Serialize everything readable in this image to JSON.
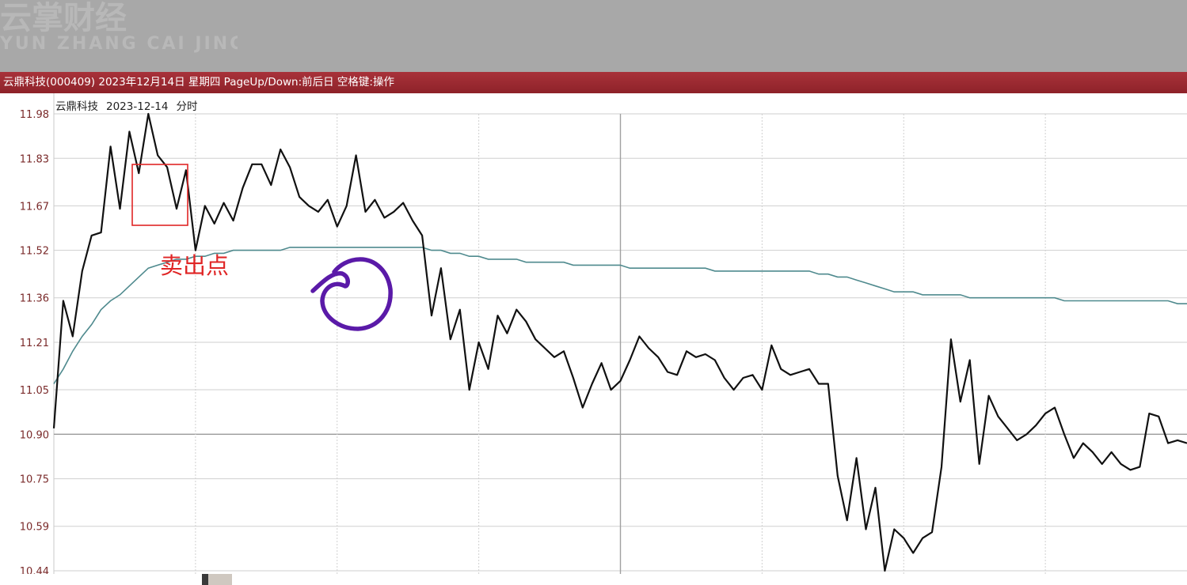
{
  "window": {
    "title_bar": "云鼎科技(000409) 2023年12月14日 星期四 PageUp/Down:前后日 空格键:操作",
    "watermark": "云掌财经"
  },
  "chart_caption": {
    "stock_name": "云鼎科技",
    "date": "2023-12-14",
    "view": "分时"
  },
  "annotations": {
    "sell_point_label": "卖出点",
    "sell_box_color": "#e02626",
    "circle_color": "#5a1aa8"
  },
  "chart_data": {
    "type": "line",
    "title": "",
    "xlabel": "",
    "ylabel": "",
    "grid": true,
    "yticks": [
      "11.98",
      "11.83",
      "11.67",
      "11.52",
      "11.36",
      "11.21",
      "11.05",
      "10.90",
      "10.75",
      "10.59",
      "10.44"
    ],
    "ylim": [
      10.44,
      11.98
    ],
    "xlim": [
      0,
      240
    ],
    "series": [
      {
        "name": "",
        "role": "price",
        "color": "#111111",
        "x": [
          0,
          2,
          4,
          6,
          8,
          10,
          12,
          14,
          16,
          18,
          20,
          22,
          24,
          26,
          28,
          30,
          32,
          34,
          36,
          38,
          40,
          42,
          44,
          46,
          48,
          50,
          52,
          54,
          56,
          58,
          60,
          62,
          64,
          66,
          68,
          70,
          72,
          74,
          76,
          78,
          80,
          82,
          84,
          86,
          88,
          90,
          92,
          94,
          96,
          98,
          100,
          102,
          104,
          106,
          108,
          110,
          112,
          114,
          116,
          118,
          120,
          122,
          124,
          126,
          128,
          130,
          132,
          134,
          136,
          138,
          140,
          142,
          144,
          146,
          148,
          150,
          152,
          154,
          156,
          158,
          160,
          162,
          164,
          166,
          168,
          170,
          172,
          174,
          176,
          178,
          180,
          182,
          184,
          186,
          188,
          190,
          192,
          194,
          196,
          198,
          200,
          202,
          204,
          206,
          208,
          210,
          212,
          214,
          216,
          218,
          220,
          222,
          224,
          226,
          228,
          230,
          232,
          234,
          236,
          238,
          240
        ],
        "y": [
          10.92,
          11.35,
          11.23,
          11.45,
          11.57,
          11.58,
          11.87,
          11.66,
          11.92,
          11.78,
          11.98,
          11.84,
          11.8,
          11.66,
          11.79,
          11.52,
          11.67,
          11.61,
          11.68,
          11.62,
          11.73,
          11.81,
          11.81,
          11.74,
          11.86,
          11.8,
          11.7,
          11.67,
          11.65,
          11.69,
          11.6,
          11.67,
          11.84,
          11.65,
          11.69,
          11.63,
          11.65,
          11.68,
          11.62,
          11.57,
          11.3,
          11.46,
          11.22,
          11.32,
          11.05,
          11.21,
          11.12,
          11.3,
          11.24,
          11.32,
          11.28,
          11.22,
          11.19,
          11.16,
          11.18,
          11.09,
          10.99,
          11.07,
          11.14,
          11.05,
          11.08,
          11.15,
          11.23,
          11.19,
          11.16,
          11.11,
          11.1,
          11.18,
          11.16,
          11.17,
          11.15,
          11.09,
          11.05,
          11.09,
          11.1,
          11.05,
          11.2,
          11.12,
          11.1,
          11.11,
          11.12,
          11.07,
          11.07,
          10.76,
          10.61,
          10.82,
          10.58,
          10.72,
          10.44,
          10.58,
          10.55,
          10.5,
          10.55,
          10.57,
          10.79,
          11.22,
          11.01,
          11.15,
          10.8,
          11.03,
          10.96,
          10.92,
          10.88,
          10.9,
          10.93,
          10.97,
          10.99,
          10.9,
          10.82,
          10.87,
          10.84,
          10.8,
          10.84,
          10.8,
          10.78,
          10.79,
          10.97,
          10.96,
          10.87,
          10.88,
          10.87
        ]
      },
      {
        "name": "",
        "role": "average",
        "color": "#4f8a8e",
        "x": [
          0,
          2,
          4,
          6,
          8,
          10,
          12,
          14,
          16,
          18,
          20,
          22,
          24,
          26,
          28,
          30,
          32,
          34,
          36,
          38,
          40,
          42,
          44,
          46,
          48,
          50,
          52,
          54,
          56,
          58,
          60,
          62,
          64,
          66,
          68,
          70,
          72,
          74,
          76,
          78,
          80,
          82,
          84,
          86,
          88,
          90,
          92,
          94,
          96,
          98,
          100,
          102,
          104,
          106,
          108,
          110,
          112,
          114,
          116,
          118,
          120,
          122,
          124,
          126,
          128,
          130,
          132,
          134,
          136,
          138,
          140,
          142,
          144,
          146,
          148,
          150,
          152,
          154,
          156,
          158,
          160,
          162,
          164,
          166,
          168,
          170,
          172,
          174,
          176,
          178,
          180,
          182,
          184,
          186,
          188,
          190,
          192,
          194,
          196,
          198,
          200,
          202,
          204,
          206,
          208,
          210,
          212,
          214,
          216,
          218,
          220,
          222,
          224,
          226,
          228,
          230,
          232,
          234,
          236,
          238,
          240
        ],
        "y": [
          11.07,
          11.12,
          11.18,
          11.23,
          11.27,
          11.32,
          11.35,
          11.37,
          11.4,
          11.43,
          11.46,
          11.47,
          11.48,
          11.49,
          11.49,
          11.5,
          11.5,
          11.51,
          11.51,
          11.52,
          11.52,
          11.52,
          11.52,
          11.52,
          11.52,
          11.53,
          11.53,
          11.53,
          11.53,
          11.53,
          11.53,
          11.53,
          11.53,
          11.53,
          11.53,
          11.53,
          11.53,
          11.53,
          11.53,
          11.53,
          11.52,
          11.52,
          11.51,
          11.51,
          11.5,
          11.5,
          11.49,
          11.49,
          11.49,
          11.49,
          11.48,
          11.48,
          11.48,
          11.48,
          11.48,
          11.47,
          11.47,
          11.47,
          11.47,
          11.47,
          11.47,
          11.46,
          11.46,
          11.46,
          11.46,
          11.46,
          11.46,
          11.46,
          11.46,
          11.46,
          11.45,
          11.45,
          11.45,
          11.45,
          11.45,
          11.45,
          11.45,
          11.45,
          11.45,
          11.45,
          11.45,
          11.44,
          11.44,
          11.43,
          11.43,
          11.42,
          11.41,
          11.4,
          11.39,
          11.38,
          11.38,
          11.38,
          11.37,
          11.37,
          11.37,
          11.37,
          11.37,
          11.36,
          11.36,
          11.36,
          11.36,
          11.36,
          11.36,
          11.36,
          11.36,
          11.36,
          11.36,
          11.35,
          11.35,
          11.35,
          11.35,
          11.35,
          11.35,
          11.35,
          11.35,
          11.35,
          11.35,
          11.35,
          11.35,
          11.34,
          11.34
        ]
      }
    ]
  }
}
